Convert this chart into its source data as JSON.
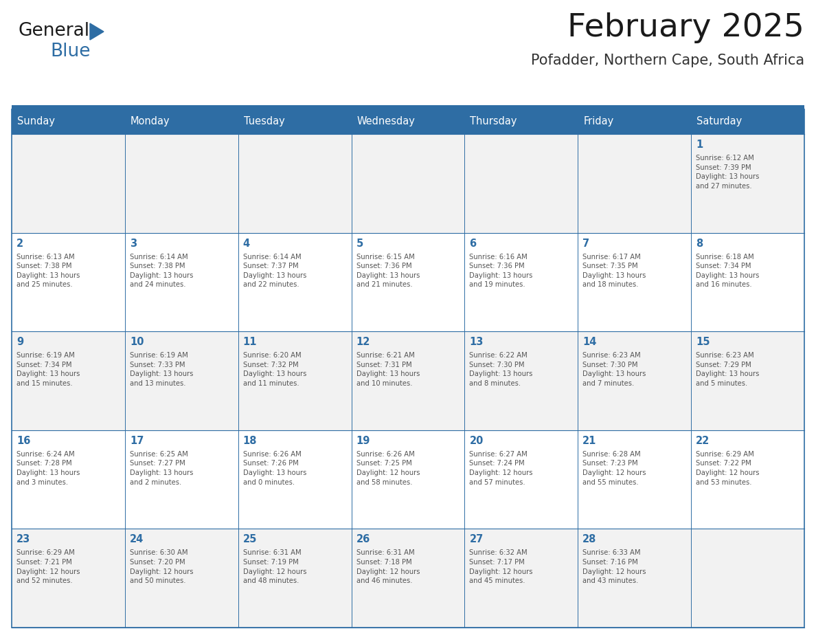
{
  "title": "February 2025",
  "subtitle": "Pofadder, Northern Cape, South Africa",
  "header_bg_color": "#2E6DA4",
  "header_text_color": "#FFFFFF",
  "cell_bg_color_odd": "#F2F2F2",
  "cell_bg_color_even": "#FFFFFF",
  "day_number_color": "#2E6DA4",
  "cell_text_color": "#555555",
  "border_color": "#2E6DA4",
  "line_color": "#AAAAAA",
  "days_of_week": [
    "Sunday",
    "Monday",
    "Tuesday",
    "Wednesday",
    "Thursday",
    "Friday",
    "Saturday"
  ],
  "weeks": [
    [
      {
        "day": "",
        "info": ""
      },
      {
        "day": "",
        "info": ""
      },
      {
        "day": "",
        "info": ""
      },
      {
        "day": "",
        "info": ""
      },
      {
        "day": "",
        "info": ""
      },
      {
        "day": "",
        "info": ""
      },
      {
        "day": "1",
        "info": "Sunrise: 6:12 AM\nSunset: 7:39 PM\nDaylight: 13 hours\nand 27 minutes."
      }
    ],
    [
      {
        "day": "2",
        "info": "Sunrise: 6:13 AM\nSunset: 7:38 PM\nDaylight: 13 hours\nand 25 minutes."
      },
      {
        "day": "3",
        "info": "Sunrise: 6:14 AM\nSunset: 7:38 PM\nDaylight: 13 hours\nand 24 minutes."
      },
      {
        "day": "4",
        "info": "Sunrise: 6:14 AM\nSunset: 7:37 PM\nDaylight: 13 hours\nand 22 minutes."
      },
      {
        "day": "5",
        "info": "Sunrise: 6:15 AM\nSunset: 7:36 PM\nDaylight: 13 hours\nand 21 minutes."
      },
      {
        "day": "6",
        "info": "Sunrise: 6:16 AM\nSunset: 7:36 PM\nDaylight: 13 hours\nand 19 minutes."
      },
      {
        "day": "7",
        "info": "Sunrise: 6:17 AM\nSunset: 7:35 PM\nDaylight: 13 hours\nand 18 minutes."
      },
      {
        "day": "8",
        "info": "Sunrise: 6:18 AM\nSunset: 7:34 PM\nDaylight: 13 hours\nand 16 minutes."
      }
    ],
    [
      {
        "day": "9",
        "info": "Sunrise: 6:19 AM\nSunset: 7:34 PM\nDaylight: 13 hours\nand 15 minutes."
      },
      {
        "day": "10",
        "info": "Sunrise: 6:19 AM\nSunset: 7:33 PM\nDaylight: 13 hours\nand 13 minutes."
      },
      {
        "day": "11",
        "info": "Sunrise: 6:20 AM\nSunset: 7:32 PM\nDaylight: 13 hours\nand 11 minutes."
      },
      {
        "day": "12",
        "info": "Sunrise: 6:21 AM\nSunset: 7:31 PM\nDaylight: 13 hours\nand 10 minutes."
      },
      {
        "day": "13",
        "info": "Sunrise: 6:22 AM\nSunset: 7:30 PM\nDaylight: 13 hours\nand 8 minutes."
      },
      {
        "day": "14",
        "info": "Sunrise: 6:23 AM\nSunset: 7:30 PM\nDaylight: 13 hours\nand 7 minutes."
      },
      {
        "day": "15",
        "info": "Sunrise: 6:23 AM\nSunset: 7:29 PM\nDaylight: 13 hours\nand 5 minutes."
      }
    ],
    [
      {
        "day": "16",
        "info": "Sunrise: 6:24 AM\nSunset: 7:28 PM\nDaylight: 13 hours\nand 3 minutes."
      },
      {
        "day": "17",
        "info": "Sunrise: 6:25 AM\nSunset: 7:27 PM\nDaylight: 13 hours\nand 2 minutes."
      },
      {
        "day": "18",
        "info": "Sunrise: 6:26 AM\nSunset: 7:26 PM\nDaylight: 13 hours\nand 0 minutes."
      },
      {
        "day": "19",
        "info": "Sunrise: 6:26 AM\nSunset: 7:25 PM\nDaylight: 12 hours\nand 58 minutes."
      },
      {
        "day": "20",
        "info": "Sunrise: 6:27 AM\nSunset: 7:24 PM\nDaylight: 12 hours\nand 57 minutes."
      },
      {
        "day": "21",
        "info": "Sunrise: 6:28 AM\nSunset: 7:23 PM\nDaylight: 12 hours\nand 55 minutes."
      },
      {
        "day": "22",
        "info": "Sunrise: 6:29 AM\nSunset: 7:22 PM\nDaylight: 12 hours\nand 53 minutes."
      }
    ],
    [
      {
        "day": "23",
        "info": "Sunrise: 6:29 AM\nSunset: 7:21 PM\nDaylight: 12 hours\nand 52 minutes."
      },
      {
        "day": "24",
        "info": "Sunrise: 6:30 AM\nSunset: 7:20 PM\nDaylight: 12 hours\nand 50 minutes."
      },
      {
        "day": "25",
        "info": "Sunrise: 6:31 AM\nSunset: 7:19 PM\nDaylight: 12 hours\nand 48 minutes."
      },
      {
        "day": "26",
        "info": "Sunrise: 6:31 AM\nSunset: 7:18 PM\nDaylight: 12 hours\nand 46 minutes."
      },
      {
        "day": "27",
        "info": "Sunrise: 6:32 AM\nSunset: 7:17 PM\nDaylight: 12 hours\nand 45 minutes."
      },
      {
        "day": "28",
        "info": "Sunrise: 6:33 AM\nSunset: 7:16 PM\nDaylight: 12 hours\nand 43 minutes."
      },
      {
        "day": "",
        "info": ""
      }
    ]
  ],
  "logo_text_general": "General",
  "logo_text_blue": "Blue",
  "logo_color_general": "#1a1a1a",
  "logo_color_blue": "#2E6DA4",
  "logo_triangle_color": "#2E6DA4",
  "fig_width": 11.88,
  "fig_height": 9.18,
  "dpi": 100
}
